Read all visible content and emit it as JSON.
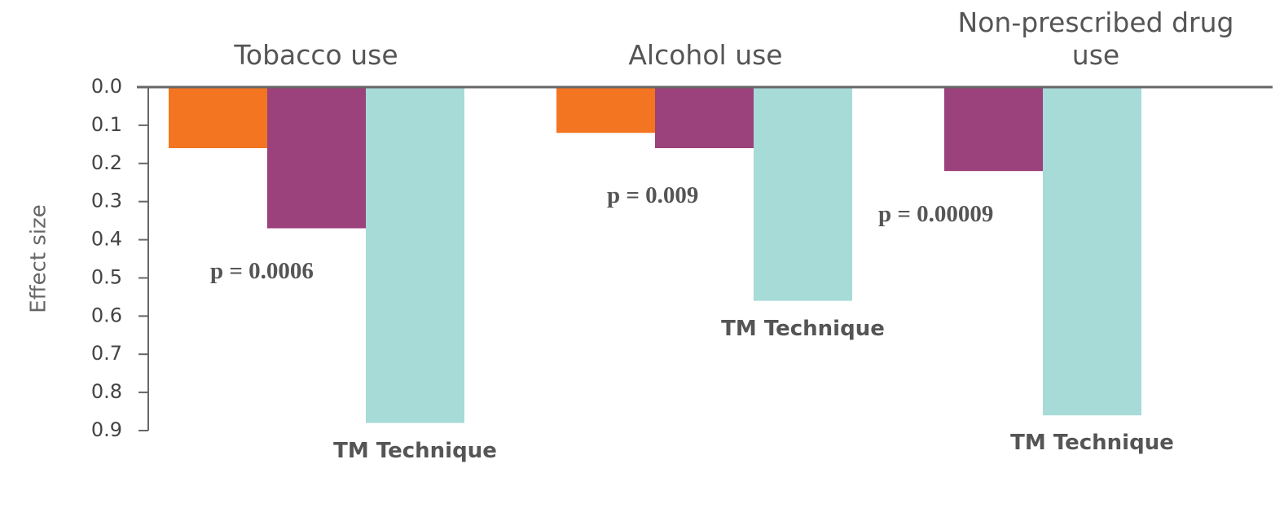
{
  "chart_data": {
    "type": "bar",
    "y_label": "Effect size",
    "categories": [
      "Tobacco use",
      "Alcohol use",
      "Non-prescribed drug use"
    ],
    "series": [
      {
        "color": "#f47521",
        "values": [
          0.16,
          0.12,
          null
        ]
      },
      {
        "color": "#9b417b",
        "values": [
          0.37,
          0.16,
          0.22
        ]
      },
      {
        "name": "TM Technique",
        "color": "#a6dbd8",
        "values": [
          0.88,
          0.56,
          0.86
        ]
      }
    ],
    "annotations": [
      "p = 0.0006",
      "p = 0.009",
      "p = 0.00009"
    ],
    "ylim": [
      0,
      0.9
    ],
    "y_inverted": true,
    "yticks": [
      {
        "value": 0,
        "label": "0.0"
      },
      0.1,
      0.2,
      0.3,
      0.4,
      0.5,
      0.6,
      0.7,
      0.8,
      0.9
    ]
  }
}
